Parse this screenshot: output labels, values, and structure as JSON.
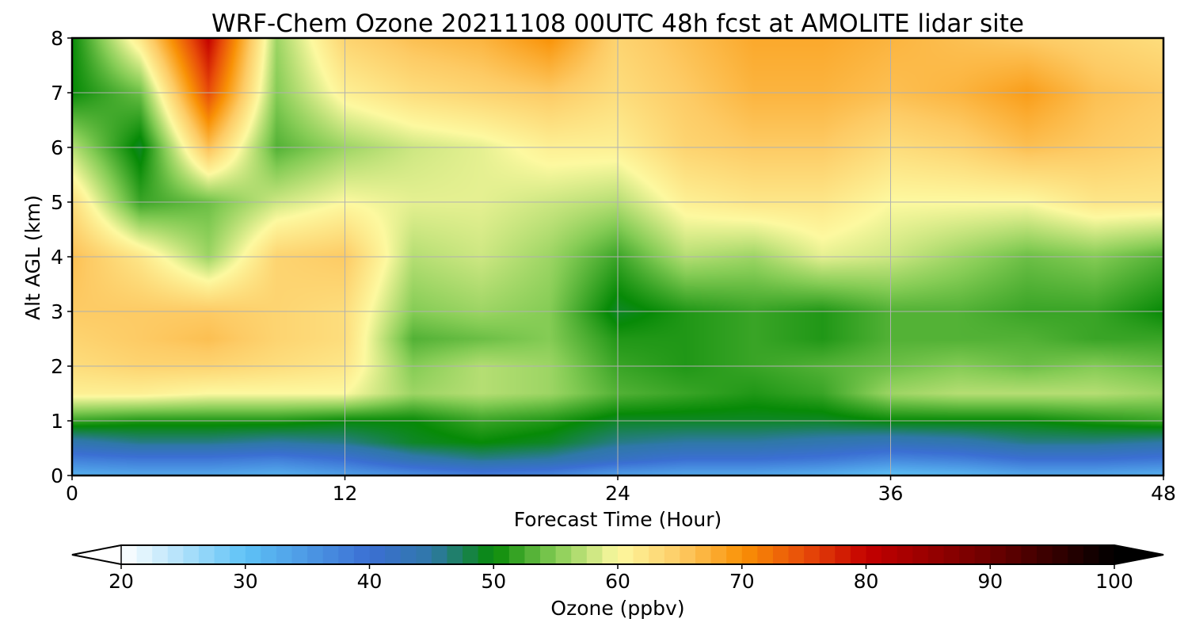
{
  "chart_data": {
    "type": "heatmap",
    "title": "WRF-Chem Ozone  20211108 00UTC 48h fcst at AMOLITE lidar site",
    "xlabel": "Forecast Time (Hour)",
    "ylabel": "Alt AGL (km)",
    "xlim": [
      0,
      48
    ],
    "ylim": [
      0,
      8
    ],
    "xticks": [
      0,
      12,
      24,
      36,
      48
    ],
    "yticks": [
      0,
      1,
      2,
      3,
      4,
      5,
      6,
      7,
      8
    ],
    "grid": true,
    "x": [
      0,
      3,
      6,
      9,
      12,
      15,
      18,
      21,
      24,
      27,
      30,
      33,
      36,
      39,
      42,
      45,
      48
    ],
    "y": [
      0,
      0.3,
      0.6,
      1,
      1.5,
      2,
      2.5,
      3,
      4,
      5,
      6,
      7,
      8
    ],
    "z": [
      [
        32,
        33,
        33,
        32,
        34,
        36,
        38,
        37,
        34,
        33,
        33,
        32,
        30,
        31,
        33,
        33,
        32
      ],
      [
        38,
        39,
        39,
        38,
        40,
        44,
        46,
        45,
        42,
        40,
        40,
        39,
        37,
        38,
        40,
        40,
        39
      ],
      [
        44,
        46,
        46,
        45,
        46,
        49,
        50,
        49,
        46,
        45,
        45,
        44,
        43,
        44,
        46,
        46,
        45
      ],
      [
        52,
        51,
        51,
        51,
        50,
        50,
        52,
        51,
        49,
        49,
        49,
        49,
        50,
        50,
        50,
        51,
        52
      ],
      [
        61,
        61,
        60,
        60,
        60,
        56,
        57,
        56,
        53,
        52,
        51,
        52,
        56,
        57,
        57,
        57,
        56
      ],
      [
        63,
        64,
        64,
        63,
        62,
        55,
        57,
        56,
        52,
        51,
        52,
        53,
        54,
        55,
        54,
        55,
        54
      ],
      [
        64,
        65,
        66,
        64,
        63,
        53,
        54,
        55,
        51,
        51,
        52,
        51,
        53,
        53,
        53,
        52,
        52
      ],
      [
        65,
        65,
        65,
        64,
        63,
        55,
        56,
        55,
        49,
        51,
        52,
        51,
        53,
        53,
        52,
        52,
        50
      ],
      [
        66,
        62,
        56,
        64,
        65,
        57,
        58,
        56,
        52,
        57,
        56,
        59,
        58,
        56,
        54,
        55,
        53
      ],
      [
        63,
        52,
        54,
        58,
        60,
        59,
        59,
        58,
        57,
        61,
        62,
        62,
        60,
        60,
        60,
        62,
        62
      ],
      [
        57,
        49,
        66,
        53,
        56,
        58,
        59,
        61,
        61,
        64,
        65,
        65,
        63,
        64,
        66,
        65,
        64
      ],
      [
        50,
        54,
        75,
        55,
        61,
        63,
        64,
        65,
        63,
        65,
        67,
        67,
        66,
        67,
        69,
        66,
        65
      ],
      [
        50,
        62,
        80,
        56,
        64,
        66,
        67,
        70,
        64,
        66,
        68,
        68,
        67,
        66,
        65,
        64,
        63
      ]
    ],
    "colorbar": {
      "label": "Ozone  (ppbv)",
      "min": 20,
      "max": 100,
      "ticks": [
        20,
        30,
        40,
        50,
        60,
        70,
        80,
        90,
        100
      ],
      "extend": "both",
      "orientation": "horizontal",
      "colors": [
        {
          "v": 20,
          "c": "#ffffff"
        },
        {
          "v": 30,
          "c": "#5ec2f6"
        },
        {
          "v": 40,
          "c": "#3b6fd3"
        },
        {
          "v": 45,
          "c": "#2f78a8"
        },
        {
          "v": 50,
          "c": "#078a07"
        },
        {
          "v": 55,
          "c": "#85cc55"
        },
        {
          "v": 60,
          "c": "#fdf9a0"
        },
        {
          "v": 65,
          "c": "#fdcb65"
        },
        {
          "v": 70,
          "c": "#f99206"
        },
        {
          "v": 75,
          "c": "#e84c09"
        },
        {
          "v": 80,
          "c": "#c40000"
        },
        {
          "v": 90,
          "c": "#6d0000"
        },
        {
          "v": 100,
          "c": "#000000"
        }
      ]
    }
  }
}
